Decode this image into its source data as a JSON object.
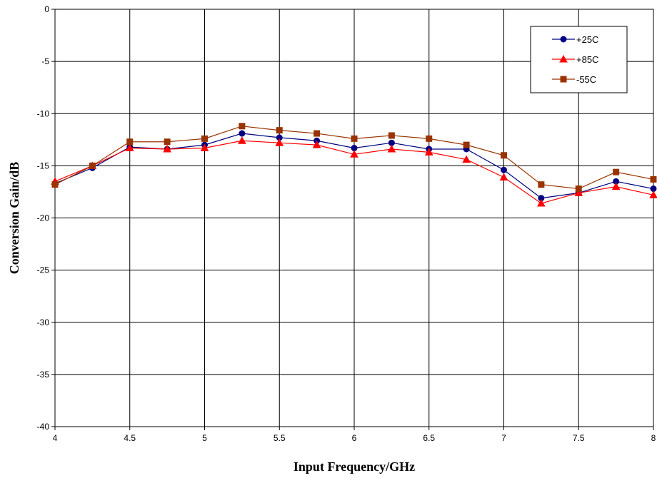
{
  "chart_data": {
    "type": "line",
    "xlabel": "Input Frequency/GHz",
    "ylabel": "Conversion Gain/dB",
    "xlim": [
      4,
      8
    ],
    "ylim": [
      -40,
      0
    ],
    "x_ticks": [
      "4",
      "4.5",
      "5",
      "5.5",
      "6",
      "6.5",
      "7",
      "7.5",
      "8"
    ],
    "y_ticks": [
      "0",
      "-5",
      "-10",
      "-15",
      "-20",
      "-25",
      "-30",
      "-35",
      "-40"
    ],
    "grid": true,
    "legend_position": "top-right",
    "x": [
      4,
      4.25,
      4.5,
      4.75,
      5,
      5.25,
      5.5,
      5.75,
      6,
      6.25,
      6.5,
      6.75,
      7,
      7.25,
      7.5,
      7.75,
      8
    ],
    "series": [
      {
        "name": "+25C",
        "color": "#000080",
        "marker": "circle",
        "values": [
          -16.7,
          -15.2,
          -13.2,
          -13.4,
          -13.0,
          -11.9,
          -12.3,
          -12.6,
          -13.3,
          -12.8,
          -13.4,
          -13.4,
          -15.4,
          -18.1,
          -17.6,
          -16.5,
          -17.2
        ]
      },
      {
        "name": "+85C",
        "color": "#ff0000",
        "marker": "triangle",
        "values": [
          -16.5,
          -15.0,
          -13.3,
          -13.4,
          -13.3,
          -12.6,
          -12.8,
          -13.0,
          -13.9,
          -13.4,
          -13.7,
          -14.4,
          -16.1,
          -18.6,
          -17.6,
          -17.0,
          -17.8
        ]
      },
      {
        "name": "-55C",
        "color": "#993300",
        "marker": "square",
        "values": [
          -16.8,
          -15.0,
          -12.7,
          -12.7,
          -12.4,
          -11.2,
          -11.6,
          -11.9,
          -12.4,
          -12.1,
          -12.4,
          -13.0,
          -14.0,
          -16.8,
          -17.2,
          -15.6,
          -16.3
        ]
      }
    ]
  }
}
